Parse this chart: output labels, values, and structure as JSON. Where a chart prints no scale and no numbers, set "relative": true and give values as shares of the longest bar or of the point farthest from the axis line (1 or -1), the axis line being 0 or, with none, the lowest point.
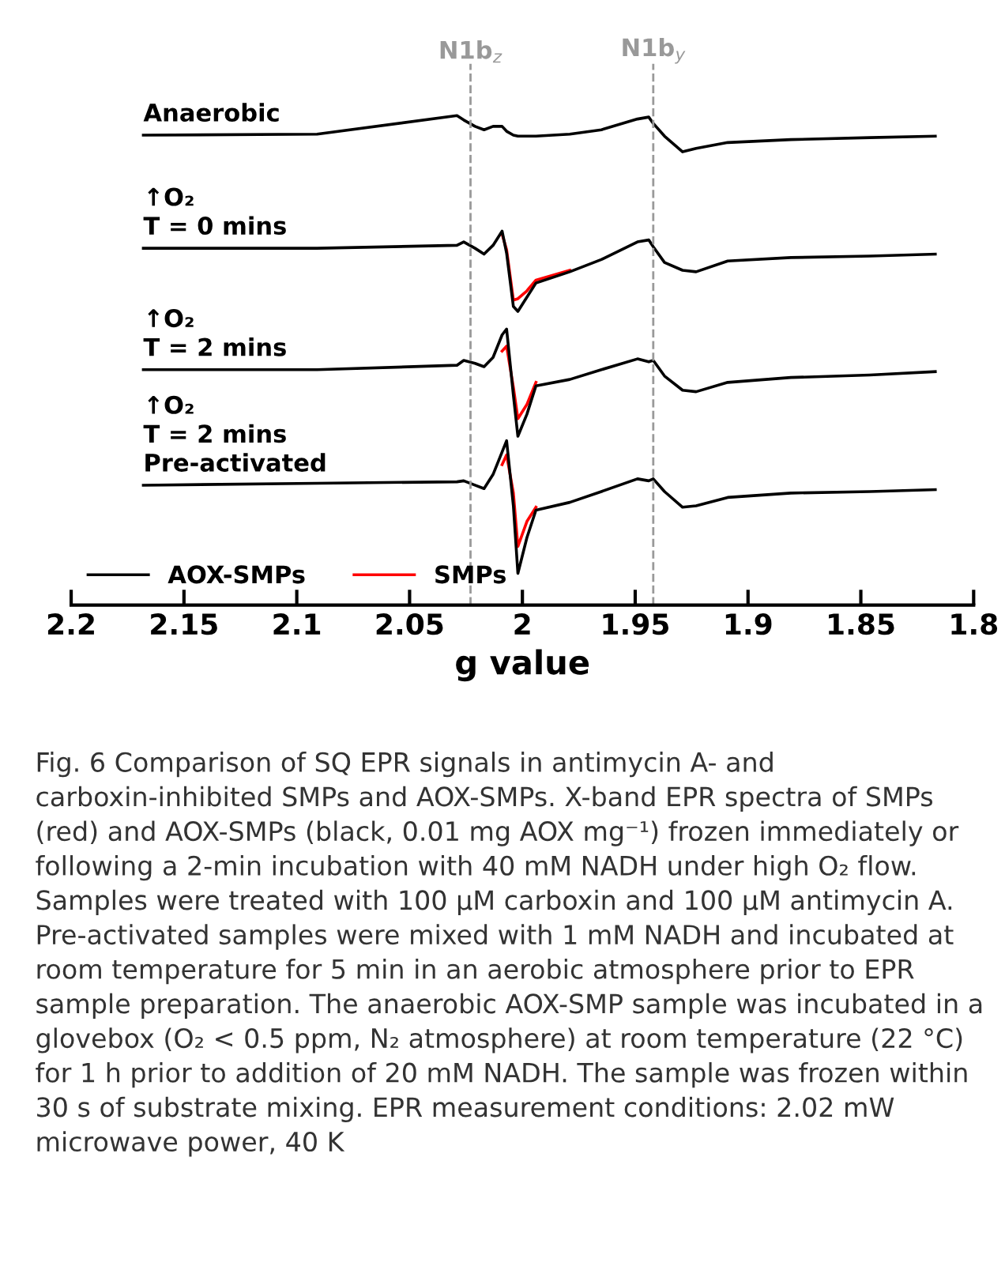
{
  "chart_data": {
    "type": "line",
    "relative": true,
    "xlabel": "g value",
    "xlim": [
      2.2,
      1.8
    ],
    "xticks": [
      2.2,
      2.15,
      2.1,
      2.05,
      2,
      1.95,
      1.9,
      1.85,
      1.8
    ],
    "x": [
      2.168,
      2.091,
      2.029,
      2.026,
      2.021,
      2.017,
      2.013,
      2.009,
      2.007,
      2.004,
      2.002,
      1.998,
      1.994,
      1.979,
      1.965,
      1.949,
      1.944,
      1.942,
      1.937,
      1.929,
      1.923,
      1.909,
      1.881,
      1.846,
      1.817
    ],
    "series": [
      {
        "name": "AOX-SMPs",
        "color": "#000000",
        "values": [
          0.96,
          0.962,
          1.0,
          0.991,
          0.978,
          0.971,
          0.978,
          0.978,
          0.968,
          0.96,
          0.958,
          0.958,
          0.958,
          0.962,
          0.971,
          0.993,
          0.997,
          0.984,
          0.958,
          0.926,
          0.933,
          0.945,
          0.951,
          0.955,
          0.958
        ]
      },
      {
        "name": "SMPs",
        "color": "#ff0000",
        "values": [
          null,
          null,
          null,
          null,
          null,
          null,
          null,
          0.758,
          0.726,
          0.623,
          0.626,
          0.642,
          0.664,
          0.684,
          null,
          null,
          null,
          null,
          null,
          null,
          null,
          null,
          null,
          null,
          null
        ]
      },
      {
        "color": "#000000",
        "values": [
          0.729,
          0.729,
          0.735,
          0.742,
          0.729,
          0.717,
          0.735,
          0.764,
          0.719,
          0.61,
          0.6,
          0.629,
          0.658,
          0.681,
          0.706,
          0.742,
          0.746,
          0.732,
          0.7,
          0.684,
          0.681,
          0.703,
          0.71,
          0.713,
          0.717
        ]
      },
      {
        "color": "#ff0000",
        "values": [
          null,
          null,
          null,
          null,
          null,
          null,
          null,
          0.519,
          0.529,
          0.445,
          0.381,
          0.41,
          0.455,
          null,
          null,
          null,
          null,
          null,
          null,
          null,
          null,
          null,
          null,
          null,
          null
        ]
      },
      {
        "color": "#000000",
        "values": [
          0.481,
          0.481,
          0.49,
          0.5,
          0.494,
          0.487,
          0.506,
          0.552,
          0.564,
          0.429,
          0.345,
          0.39,
          0.448,
          0.461,
          0.481,
          0.503,
          0.497,
          0.5,
          0.468,
          0.439,
          0.436,
          0.455,
          0.465,
          0.47,
          0.477
        ]
      },
      {
        "color": "#ff0000",
        "values": [
          null,
          null,
          null,
          null,
          null,
          null,
          null,
          0.287,
          0.307,
          0.229,
          0.12,
          0.171,
          0.2,
          null,
          null,
          null,
          null,
          null,
          null,
          null,
          null,
          null,
          null,
          null,
          null
        ]
      },
      {
        "color": "#000000",
        "values": [
          0.245,
          0.249,
          0.252,
          0.254,
          0.245,
          0.238,
          0.267,
          0.313,
          0.336,
          0.203,
          0.065,
          0.138,
          0.194,
          0.21,
          0.232,
          0.258,
          0.254,
          0.258,
          0.232,
          0.2,
          0.203,
          0.22,
          0.229,
          0.232,
          0.236
        ]
      }
    ],
    "ref_lines": [
      {
        "axis": "x",
        "value": 2.023,
        "label": "N1b$_{z}$",
        "color": "#999999",
        "line_style": "dashed"
      },
      {
        "axis": "x",
        "value": 1.942,
        "label": "N1b$_{y}$",
        "color": "#999999",
        "line_style": "dashed"
      }
    ],
    "legend": "bottom left",
    "grid": false,
    "annotations": [
      "Anaerobic",
      "↑O₂\nT = 0 mins",
      "↑O₂\nT = 2 mins",
      "↑O₂\nT = 2 mins\nPre-activated",
      "Fig. 6 Comparison of SQ EPR signals in antimycin A- and carboxin-inhibited SMPs and AOX-SMPs. X-band EPR spectra of SMPs (red) and AOX-SMPs (black, 0.01 mg AOX mg⁻¹) frozen immediately or following a 2-min incubation with 40 mM NADH under high O₂ flow. Samples were treated with 100 µM carboxin and 100 µM antimycin A. Pre-activated samples were mixed with 1 mM NADH and incubated at room temperature for 5 min in an aerobic atmosphere prior to EPR sample preparation. The anaerobic AOX-SMP sample was incubated in a glovebox (O₂ < 0.5 ppm, N₂ atmosphere) at room temperature (22 °C) for 1 h prior to addition of 20 mM NADH. The sample was frozen within 30 s of substrate mixing. EPR measurement conditions: 2.02 mW microwave power, 40 K"
    ]
  }
}
